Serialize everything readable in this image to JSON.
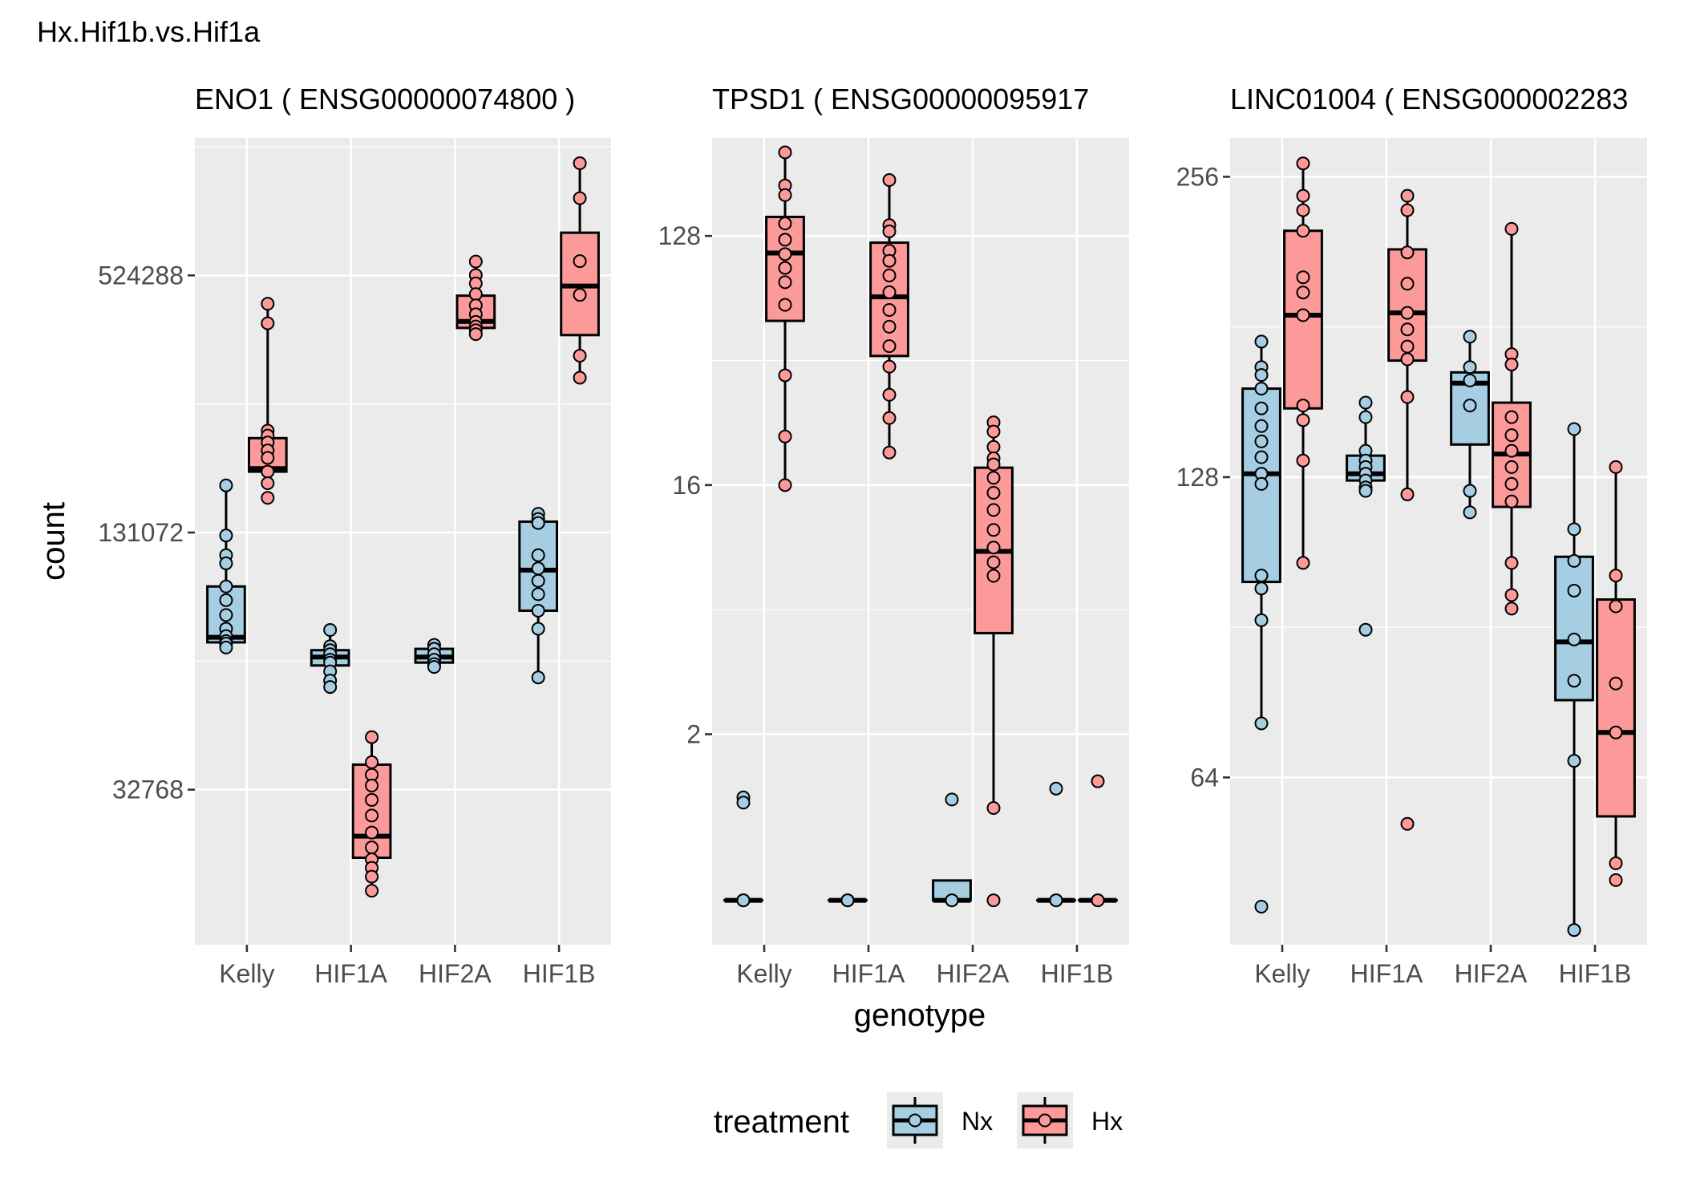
{
  "title": "Hx.Hif1b.vs.Hif1a",
  "colors": {
    "Nx": "#a6cee3",
    "Hx": "#fb9a99",
    "panel_bg": "#ebebeb",
    "grid": "#ffffff"
  },
  "legend": {
    "title": "treatment",
    "items": [
      {
        "key": "Nx",
        "label": "Nx"
      },
      {
        "key": "Hx",
        "label": "Hx"
      }
    ]
  },
  "chart_data": [
    {
      "type": "box",
      "title": "ENO1 ( ENSG00000074800 )",
      "xlabel": "",
      "ylabel": "count",
      "y_scale": "log2",
      "categories": [
        "Kelly",
        "HIF1A",
        "HIF2A",
        "HIF1B"
      ],
      "yticks": [
        32768,
        131072,
        524288
      ],
      "ylim": [
        14200,
        1100000
      ],
      "series": [
        {
          "name": "Nx",
          "boxes": [
            {
              "lower": 71000,
              "q1": 72500,
              "median": 74500,
              "q3": 98000,
              "upper": 169000,
              "points": [
                169000,
                129000,
                116000,
                111000,
                98000,
                91000,
                84000,
                78000,
                75000,
                73000,
                72000,
                70500
              ]
            },
            {
              "lower": 57000,
              "q1": 64000,
              "median": 67000,
              "q3": 69500,
              "upper": 77500,
              "points": [
                77500,
                71000,
                69500,
                68000,
                66000,
                65000,
                62000,
                59000,
                57000
              ]
            },
            {
              "lower": 63000,
              "q1": 65000,
              "median": 67000,
              "q3": 70000,
              "upper": 71500,
              "points": [
                71500,
                70000,
                68000,
                66000,
                64500,
                63500
              ]
            },
            {
              "lower": 60000,
              "q1": 86000,
              "median": 107000,
              "q3": 139000,
              "upper": 145000,
              "points": [
                145000,
                141000,
                138000,
                116000,
                108000,
                101000,
                94000,
                86000,
                78000,
                60000
              ]
            }
          ]
        },
        {
          "name": "Hx",
          "boxes": [
            {
              "lower": 195000,
              "q1": 182000,
              "median": 185000,
              "q3": 218000,
              "upper": 450000,
              "points": [
                450000,
                405000,
                227000,
                221000,
                213000,
                204000,
                196000,
                182000,
                171000,
                158000
              ]
            },
            {
              "lower": 19000,
              "q1": 22700,
              "median": 25500,
              "q3": 37500,
              "upper": 43500,
              "points": [
                43500,
                38000,
                35500,
                33500,
                31000,
                28500,
                26000,
                24000,
                22500,
                21500,
                20500,
                19000
              ]
            },
            {
              "lower": 385000,
              "q1": 395000,
              "median": 409000,
              "q3": 470000,
              "upper": 565000,
              "points": [
                565000,
                525000,
                502000,
                474000,
                446000,
                425000,
                408000,
                398000,
                390000,
                382000
              ]
            },
            {
              "lower": 292000,
              "q1": 380000,
              "median": 495000,
              "q3": 660000,
              "upper": 960000,
              "points": [
                960000,
                795000,
                566000,
                472000,
                340000,
                302000
              ]
            }
          ]
        }
      ]
    },
    {
      "type": "box",
      "title": "TPSD1 ( ENSG00000095917",
      "xlabel": "genotype",
      "ylabel": "",
      "y_scale": "log2",
      "categories": [
        "Kelly",
        "HIF1A",
        "HIF2A",
        "HIF1B"
      ],
      "yticks": [
        2,
        16,
        128
      ],
      "ylim": [
        0.345,
        290
      ],
      "series": [
        {
          "name": "Nx",
          "boxes": [
            {
              "lower": 0.5,
              "q1": 0.5,
              "median": 0.5,
              "q3": 0.5,
              "upper": 0.5,
              "points": [
                1.18,
                1.13,
                0.5,
                0.5,
                0.5
              ]
            },
            {
              "lower": 0.5,
              "q1": 0.5,
              "median": 0.5,
              "q3": 0.5,
              "upper": 0.5,
              "points": [
                0.5,
                0.5,
                0.5
              ]
            },
            {
              "lower": 0.5,
              "q1": 0.5,
              "median": 0.5,
              "q3": 0.59,
              "upper": 0.59,
              "points": [
                1.16,
                0.5,
                0.5
              ]
            },
            {
              "lower": 0.5,
              "q1": 0.5,
              "median": 0.5,
              "q3": 0.5,
              "upper": 0.5,
              "points": [
                1.27,
                0.5,
                0.5
              ]
            }
          ]
        },
        {
          "name": "Hx",
          "boxes": [
            {
              "lower": 16,
              "q1": 63,
              "median": 111,
              "q3": 150,
              "upper": 257,
              "points": [
                257,
                195,
                180,
                142,
                124,
                110,
                98,
                87,
                72,
                40,
                24,
                16
              ]
            },
            {
              "lower": 21,
              "q1": 47,
              "median": 77,
              "q3": 121,
              "upper": 204,
              "points": [
                204,
                140,
                133,
                113,
                104,
                92,
                80,
                69,
                60,
                51,
                43,
                34,
                28,
                21
              ]
            },
            {
              "lower": 1.08,
              "q1": 4.65,
              "median": 9.2,
              "q3": 18.5,
              "upper": 27,
              "points": [
                27,
                25,
                22,
                20,
                19,
                17,
                15,
                13,
                11,
                9.5,
                8.4,
                7.5,
                1.08,
                0.5
              ]
            },
            {
              "lower": 0.5,
              "q1": 0.5,
              "median": 0.5,
              "q3": 0.5,
              "upper": 0.5,
              "points": [
                1.35,
                0.5,
                0.5
              ]
            }
          ]
        }
      ]
    },
    {
      "type": "box",
      "title": "LINC01004 ( ENSG000002283",
      "xlabel": "",
      "ylabel": "",
      "y_scale": "log2",
      "categories": [
        "Kelly",
        "HIF1A",
        "HIF2A",
        "HIF1B"
      ],
      "yticks": [
        64,
        128,
        256
      ],
      "ylim": [
        43.5,
        280
      ],
      "series": [
        {
          "name": "Nx",
          "boxes": [
            {
              "lower": 72.5,
              "q1": 100.5,
              "median": 129,
              "q3": 157,
              "upper": 175,
              "points": [
                175,
                165,
                162,
                157,
                150,
                144,
                139,
                134,
                129,
                126,
                102,
                99,
                92,
                72.5,
                47.5
              ]
            },
            {
              "lower": 126,
              "q1": 127,
              "median": 129,
              "q3": 134.5,
              "upper": 152,
              "points": [
                152,
                147,
                136,
                133,
                131,
                129,
                127,
                125,
                124,
                90
              ]
            },
            {
              "lower": 118,
              "q1": 138,
              "median": 159,
              "q3": 163,
              "upper": 177,
              "points": [
                177,
                165,
                160,
                151,
                124,
                118
              ]
            },
            {
              "lower": 45,
              "q1": 76.5,
              "median": 87.5,
              "q3": 106.5,
              "upper": 143,
              "points": [
                143,
                113.5,
                105.5,
                98.5,
                88,
                80,
                66.5,
                45
              ]
            }
          ]
        },
        {
          "name": "Hx",
          "boxes": [
            {
              "lower": 105,
              "q1": 150,
              "median": 186,
              "q3": 226,
              "upper": 264,
              "points": [
                264,
                245,
                237,
                226,
                203,
                196,
                186,
                151,
                146,
                133,
                105
              ]
            },
            {
              "lower": 123,
              "q1": 167.5,
              "median": 187,
              "q3": 216.5,
              "upper": 245,
              "points": [
                245,
                237,
                215,
                200,
                187,
                180,
                173,
                168,
                154,
                123,
                57.5
              ]
            },
            {
              "lower": 94.5,
              "q1": 119.5,
              "median": 135,
              "q3": 152,
              "upper": 227,
              "points": [
                227,
                170,
                166,
                147,
                141,
                136,
                131,
                126,
                121,
                105,
                97.5,
                94.5
              ]
            },
            {
              "lower": 52.5,
              "q1": 58.5,
              "median": 71,
              "q3": 96.5,
              "upper": 131,
              "points": [
                131,
                102,
                95,
                79.5,
                71,
                52.5,
                50.5
              ]
            }
          ]
        }
      ]
    }
  ]
}
